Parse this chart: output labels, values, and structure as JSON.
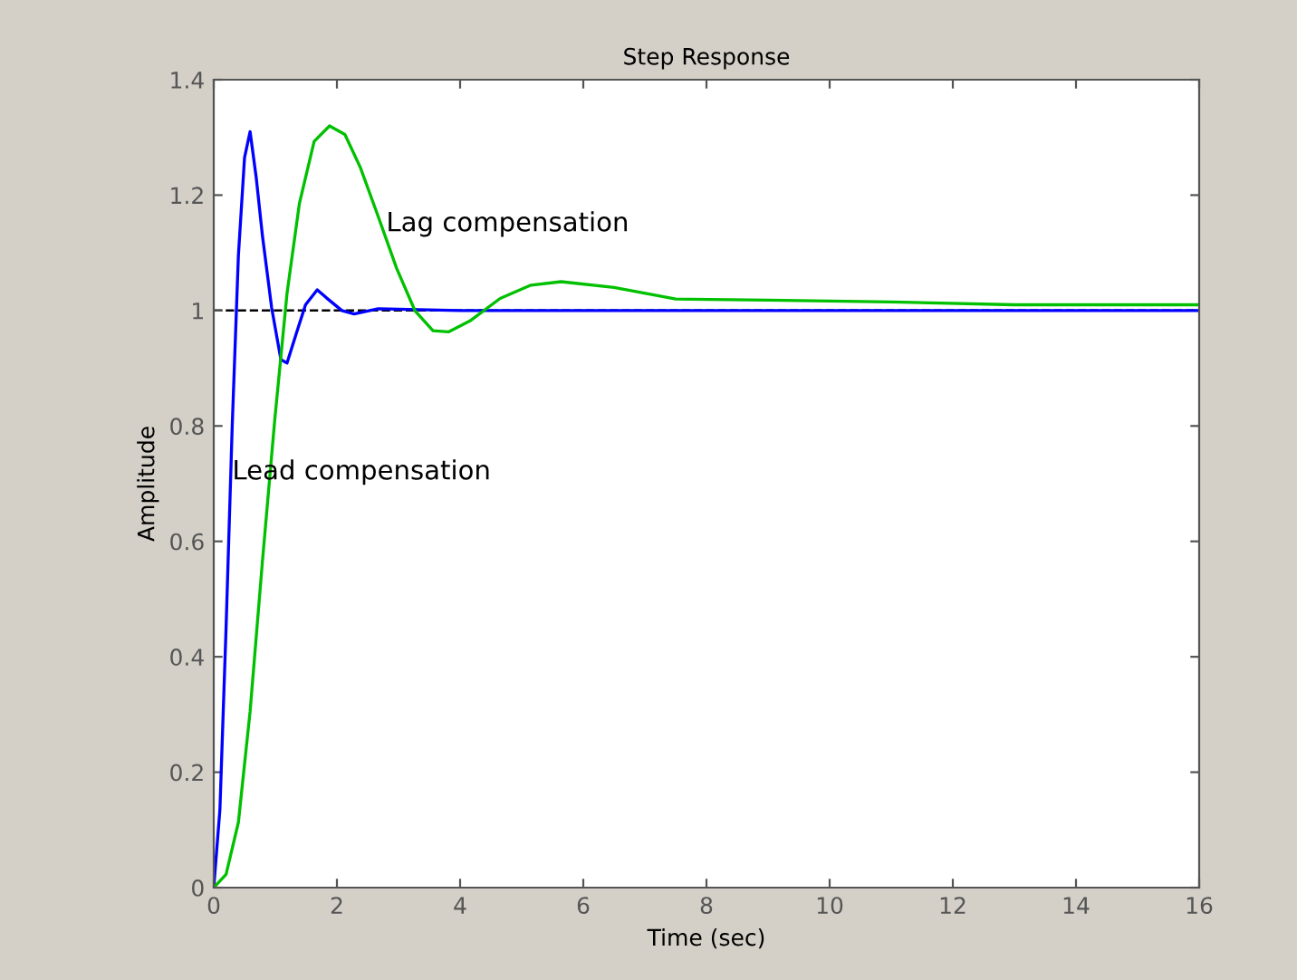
{
  "chart_data": {
    "type": "line",
    "title": "Step Response",
    "xlabel": "Time (sec)",
    "ylabel": "Amplitude",
    "xlim": [
      0,
      16
    ],
    "ylim": [
      0,
      1.4
    ],
    "xticks": [
      0,
      2,
      4,
      6,
      8,
      10,
      12,
      14,
      16
    ],
    "yticks": [
      0,
      0.2,
      0.4,
      0.6,
      0.8,
      1,
      1.2,
      1.4
    ],
    "grid": false,
    "legend": false,
    "line_style": "solid",
    "marker": "none",
    "series": [
      {
        "color": "#0000ff",
        "x": [
          0,
          0.1,
          0.2,
          0.3,
          0.4,
          0.5,
          0.59,
          0.69,
          0.79,
          0.94,
          1.09,
          1.19,
          1.34,
          1.49,
          1.68,
          1.83,
          2.08,
          2.28,
          2.67,
          4,
          6,
          8,
          10,
          12,
          14,
          16
        ],
        "values": [
          0,
          0.135,
          0.45,
          0.8,
          1.095,
          1.265,
          1.31,
          1.23,
          1.13,
          1.005,
          0.915,
          0.909,
          0.96,
          1.01,
          1.036,
          1.022,
          1.0,
          0.994,
          1.003,
          1.0,
          1.0,
          1.0,
          1.0,
          1.0,
          1.0,
          1.0
        ]
      },
      {
        "color": "#00c000",
        "x": [
          0,
          0.2,
          0.4,
          0.59,
          0.79,
          0.99,
          1.19,
          1.39,
          1.63,
          1.88,
          2.13,
          2.38,
          2.67,
          2.97,
          3.27,
          3.56,
          3.81,
          4.16,
          4.65,
          5.15,
          5.64,
          6.5,
          7.5,
          9,
          11,
          13,
          16
        ],
        "values": [
          0,
          0.023,
          0.113,
          0.305,
          0.565,
          0.81,
          1.03,
          1.185,
          1.293,
          1.32,
          1.305,
          1.248,
          1.163,
          1.073,
          0.999,
          0.965,
          0.963,
          0.982,
          1.021,
          1.044,
          1.05,
          1.04,
          1.02,
          1.018,
          1.015,
          1.01,
          1.01
        ]
      }
    ],
    "ref_lines": [
      {
        "axis": "y",
        "value": 1,
        "color": "#000000",
        "line_style": "dashed"
      }
    ],
    "annotations": [
      {
        "text": "Lag compensation",
        "x": 2.8,
        "y": 1.15
      },
      {
        "text": "Lead compensation",
        "x": 0.3,
        "y": 0.72
      }
    ]
  }
}
